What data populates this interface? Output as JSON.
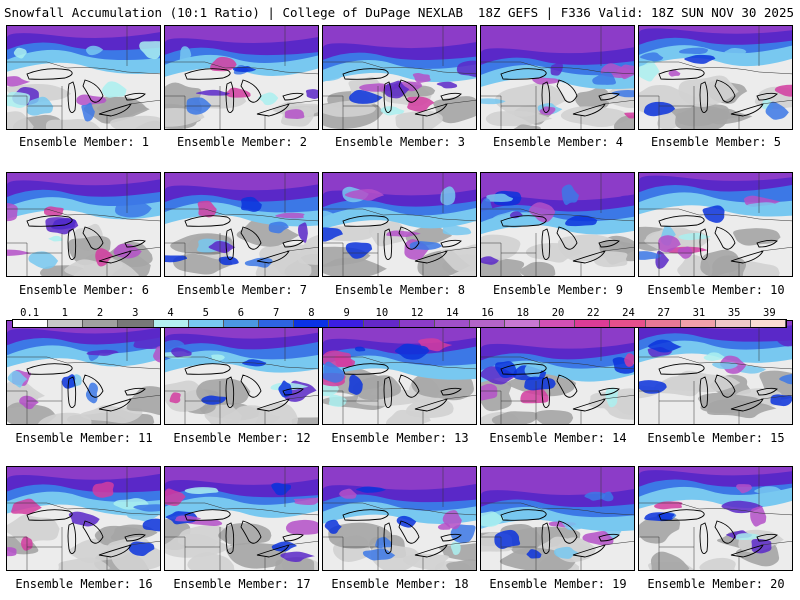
{
  "header": {
    "left_title": "Snowfall Accumulation (10:1 Ratio) | College of DuPage NEXLAB",
    "right_title": "18Z GEFS | F336 Valid: 18Z SUN NOV 30 2025"
  },
  "members": [
    {
      "label": "Ensemble Member: 1"
    },
    {
      "label": "Ensemble Member: 2"
    },
    {
      "label": "Ensemble Member: 3"
    },
    {
      "label": "Ensemble Member: 4"
    },
    {
      "label": "Ensemble Member: 5"
    },
    {
      "label": "Ensemble Member: 6"
    },
    {
      "label": "Ensemble Member: 7"
    },
    {
      "label": "Ensemble Member: 8"
    },
    {
      "label": "Ensemble Member: 9"
    },
    {
      "label": "Ensemble Member: 10"
    },
    {
      "label": "Ensemble Member: 11"
    },
    {
      "label": "Ensemble Member: 12"
    },
    {
      "label": "Ensemble Member: 13"
    },
    {
      "label": "Ensemble Member: 14"
    },
    {
      "label": "Ensemble Member: 15"
    },
    {
      "label": "Ensemble Member: 16"
    },
    {
      "label": "Ensemble Member: 17"
    },
    {
      "label": "Ensemble Member: 18"
    },
    {
      "label": "Ensemble Member: 19"
    },
    {
      "label": "Ensemble Member: 20"
    }
  ],
  "color_scale": {
    "labels": [
      "0.1",
      "1",
      "2",
      "3",
      "4",
      "5",
      "6",
      "7",
      "8",
      "9",
      "10",
      "12",
      "14",
      "16",
      "18",
      "20",
      "22",
      "24",
      "27",
      "31",
      "35",
      "39"
    ],
    "colors": [
      "#ffffff",
      "#c8c8c8",
      "#a0a0a0",
      "#787878",
      "#b4f0f0",
      "#78c8f0",
      "#4b96e1",
      "#2d64e1",
      "#0a32e6",
      "#3c1ee1",
      "#6428c8",
      "#8c3cc8",
      "#a050c8",
      "#b464c8",
      "#c878d2",
      "#d250b4",
      "#dc3c96",
      "#e6508c",
      "#e67896",
      "#f0a0aa",
      "#f0c8c8",
      "#fadcd2"
    ]
  }
}
